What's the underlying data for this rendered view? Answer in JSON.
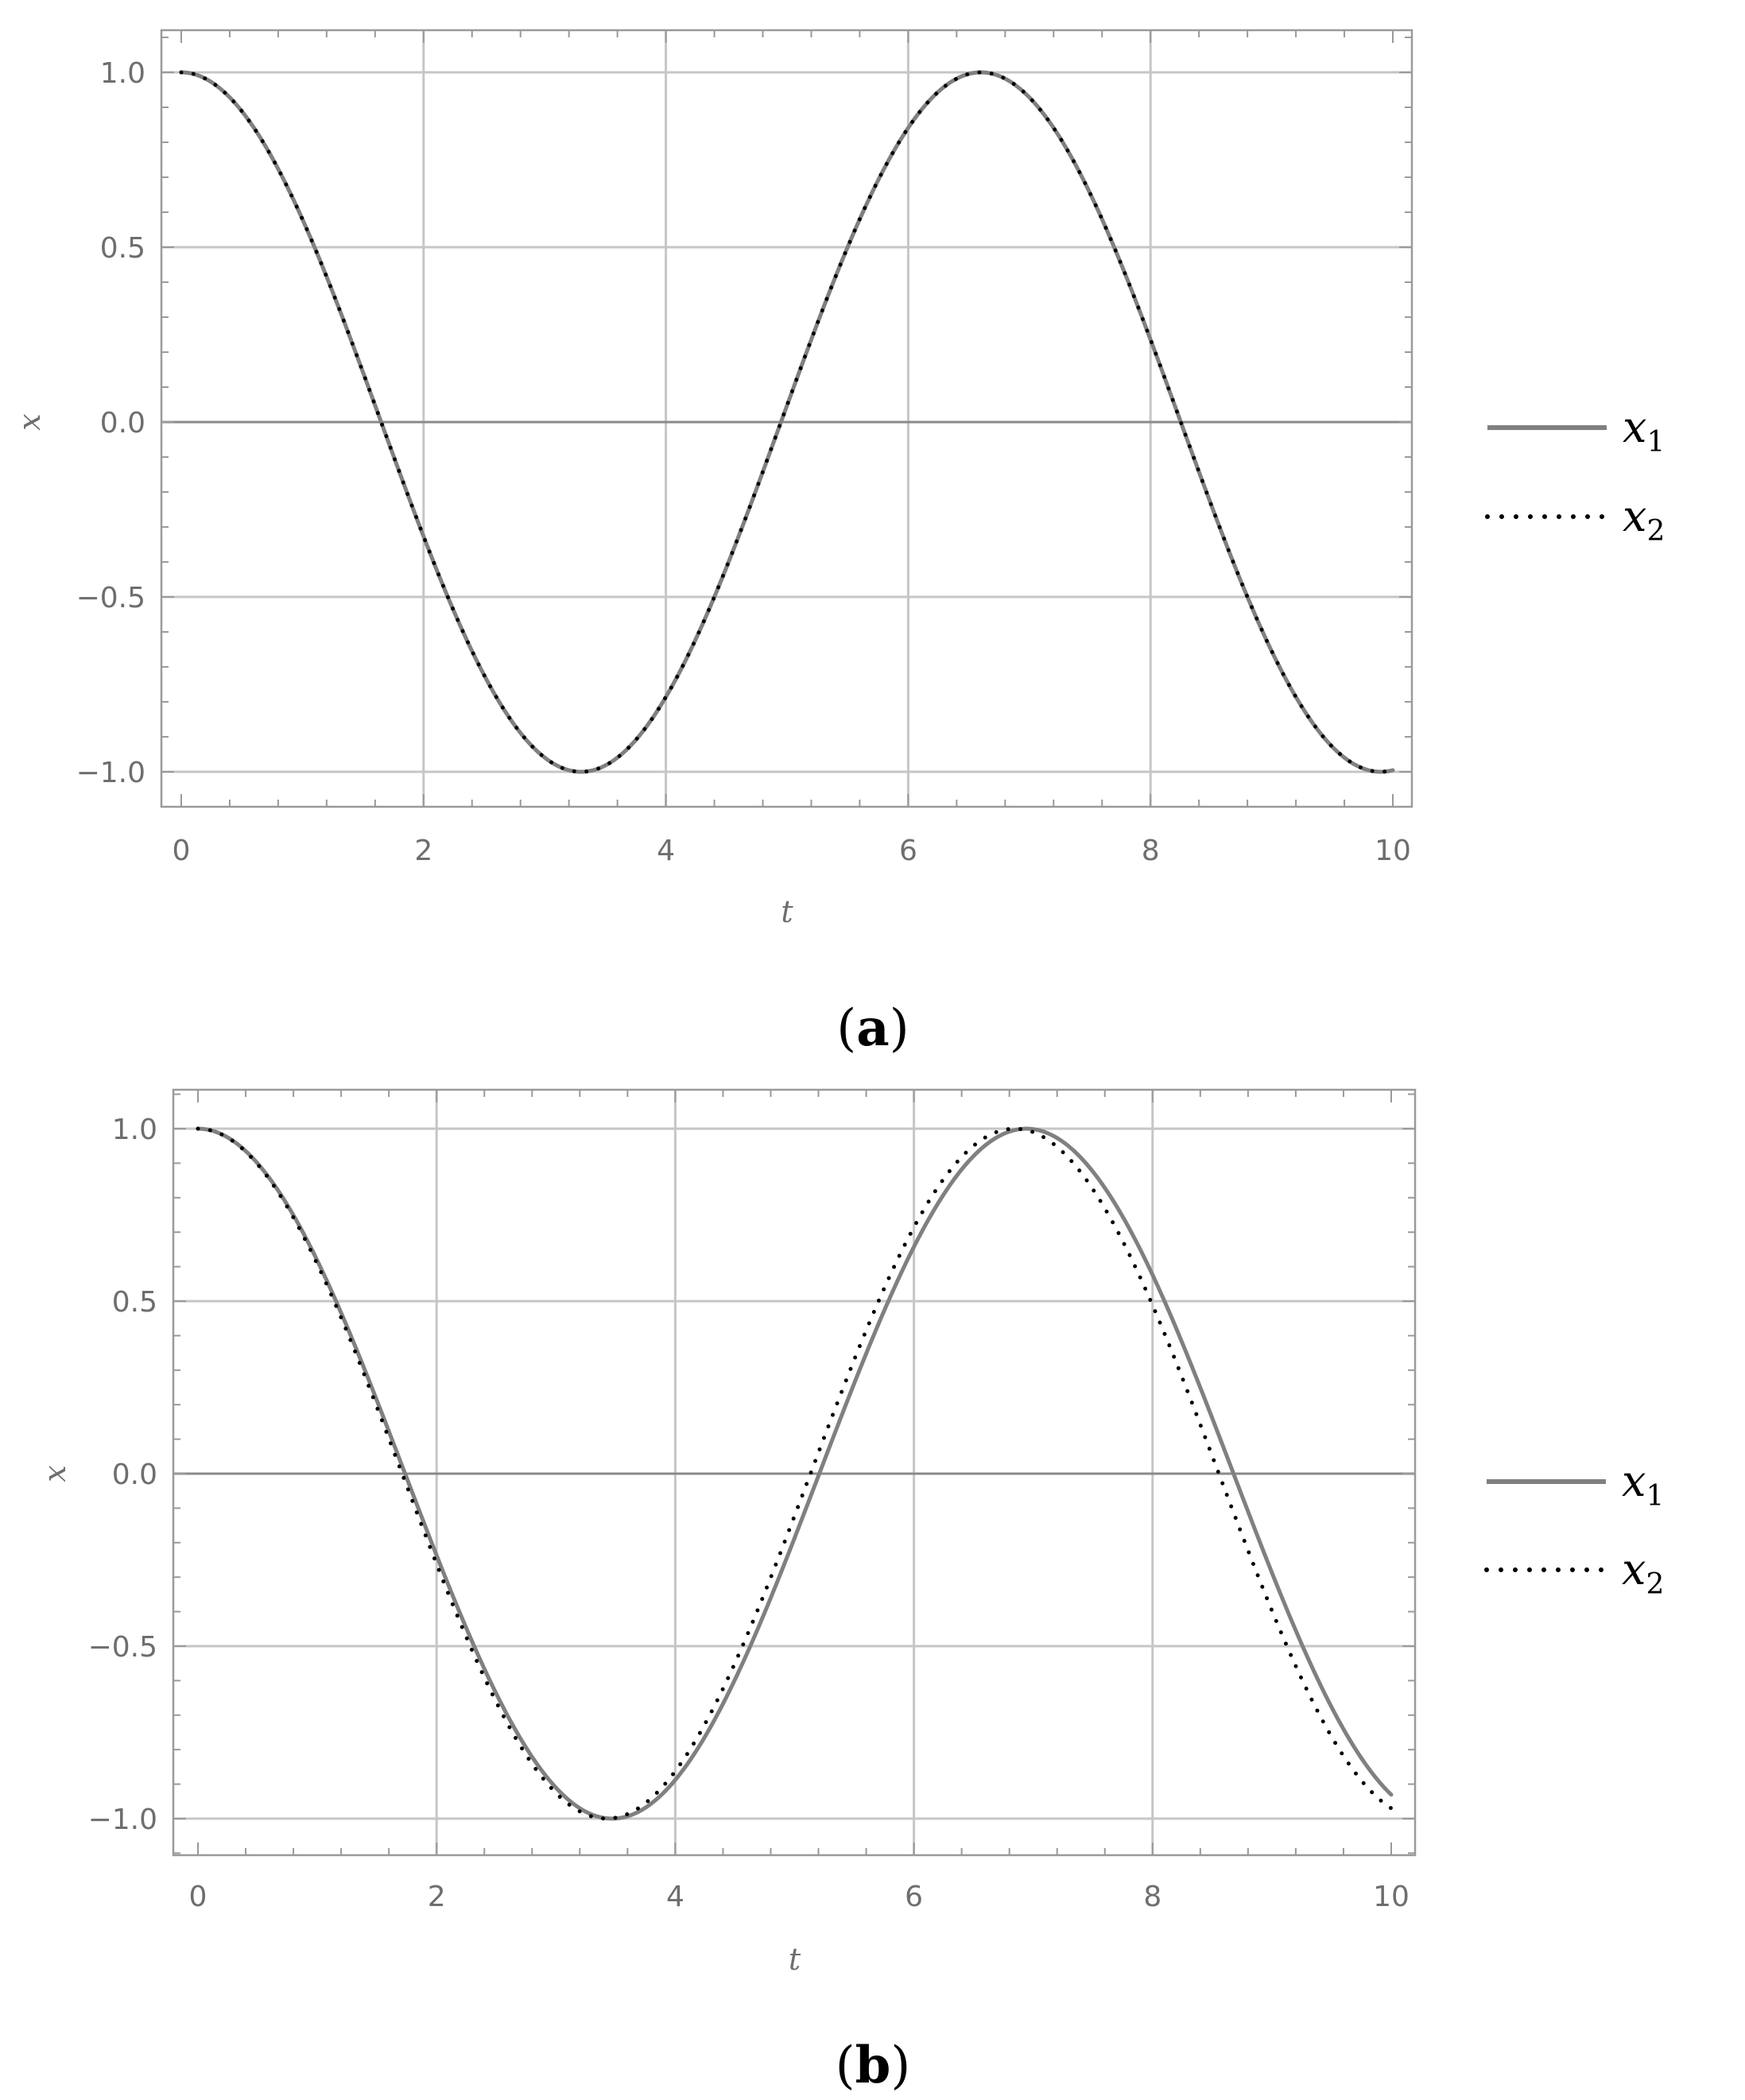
{
  "chart_data": [
    {
      "panel_label": "a",
      "type": "line",
      "xlabel": "t",
      "ylabel": "x",
      "xlim": [
        0,
        10
      ],
      "ylim": [
        -1.1,
        1.1
      ],
      "xticks": [
        "0",
        "2",
        "4",
        "6",
        "8",
        "10"
      ],
      "yticks": [
        "1.0",
        "0.5",
        "0.0",
        "−0.5",
        "−1.0"
      ],
      "grid": true,
      "legend_position": "right",
      "colors": {
        "x1": "#808080",
        "x2": "#000000"
      },
      "series": [
        {
          "name": "x",
          "sub": "1",
          "style": "solid",
          "omega": 0.952,
          "x_range": [
            0,
            10
          ]
        },
        {
          "name": "x",
          "sub": "2",
          "style": "dotted",
          "omega": 0.952,
          "x_range": [
            0,
            10
          ]
        }
      ]
    },
    {
      "panel_label": "b",
      "type": "line",
      "xlabel": "t",
      "ylabel": "x",
      "xlim": [
        0,
        10
      ],
      "ylim": [
        -1.1,
        1.1
      ],
      "xticks": [
        "0",
        "2",
        "4",
        "6",
        "8",
        "10"
      ],
      "yticks": [
        "1.0",
        "0.5",
        "0.0",
        "−0.5",
        "−1.0"
      ],
      "grid": true,
      "legend_position": "right",
      "colors": {
        "x1": "#808080",
        "x2": "#000000"
      },
      "series": [
        {
          "name": "x",
          "sub": "1",
          "style": "solid",
          "omega": 0.905,
          "x_range": [
            0,
            10
          ]
        },
        {
          "name": "x",
          "sub": "2",
          "style": "dotted",
          "omega": 0.918,
          "x_range": [
            0,
            10
          ]
        }
      ]
    }
  ]
}
